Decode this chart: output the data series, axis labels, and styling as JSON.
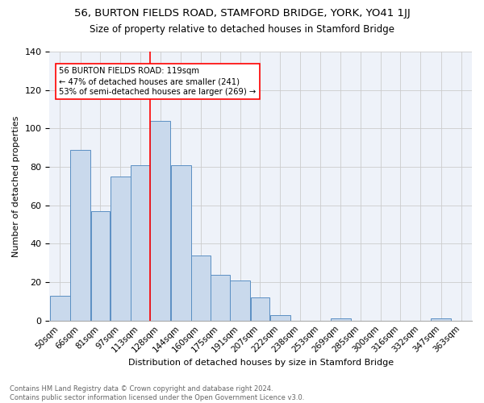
{
  "title": "56, BURTON FIELDS ROAD, STAMFORD BRIDGE, YORK, YO41 1JJ",
  "subtitle": "Size of property relative to detached houses in Stamford Bridge",
  "xlabel": "Distribution of detached houses by size in Stamford Bridge",
  "ylabel": "Number of detached properties",
  "bar_labels": [
    "50sqm",
    "66sqm",
    "81sqm",
    "97sqm",
    "113sqm",
    "128sqm",
    "144sqm",
    "160sqm",
    "175sqm",
    "191sqm",
    "207sqm",
    "222sqm",
    "238sqm",
    "253sqm",
    "269sqm",
    "285sqm",
    "300sqm",
    "316sqm",
    "332sqm",
    "347sqm",
    "363sqm"
  ],
  "bar_values": [
    13,
    89,
    57,
    75,
    81,
    104,
    81,
    34,
    24,
    21,
    12,
    3,
    0,
    0,
    1,
    0,
    0,
    0,
    0,
    1,
    0
  ],
  "bar_color": "#c9d9ec",
  "bar_edge_color": "#5a8fc3",
  "property_line_label": "56 BURTON FIELDS ROAD: 119sqm",
  "annotation_line1": "← 47% of detached houses are smaller (241)",
  "annotation_line2": "53% of semi-detached houses are larger (269) →",
  "annotation_box_color": "white",
  "annotation_box_edge_color": "red",
  "vline_color": "red",
  "ylim": [
    0,
    140
  ],
  "yticks": [
    0,
    20,
    40,
    60,
    80,
    100,
    120,
    140
  ],
  "grid_color": "#cccccc",
  "bg_color": "#eef2f9",
  "footer_line1": "Contains HM Land Registry data © Crown copyright and database right 2024.",
  "footer_line2": "Contains public sector information licensed under the Open Government Licence v3.0.",
  "title_fontsize": 9.5,
  "subtitle_fontsize": 8.5,
  "bin_edges": [
    42.5,
    58.5,
    74.5,
    89.5,
    105.5,
    120.5,
    136.5,
    152.5,
    167.5,
    182.5,
    198.5,
    213.5,
    229.5,
    244.5,
    260.5,
    276.5,
    291.5,
    307.5,
    322.5,
    338.5,
    354.5,
    370.5
  ],
  "vline_x": 120.5
}
